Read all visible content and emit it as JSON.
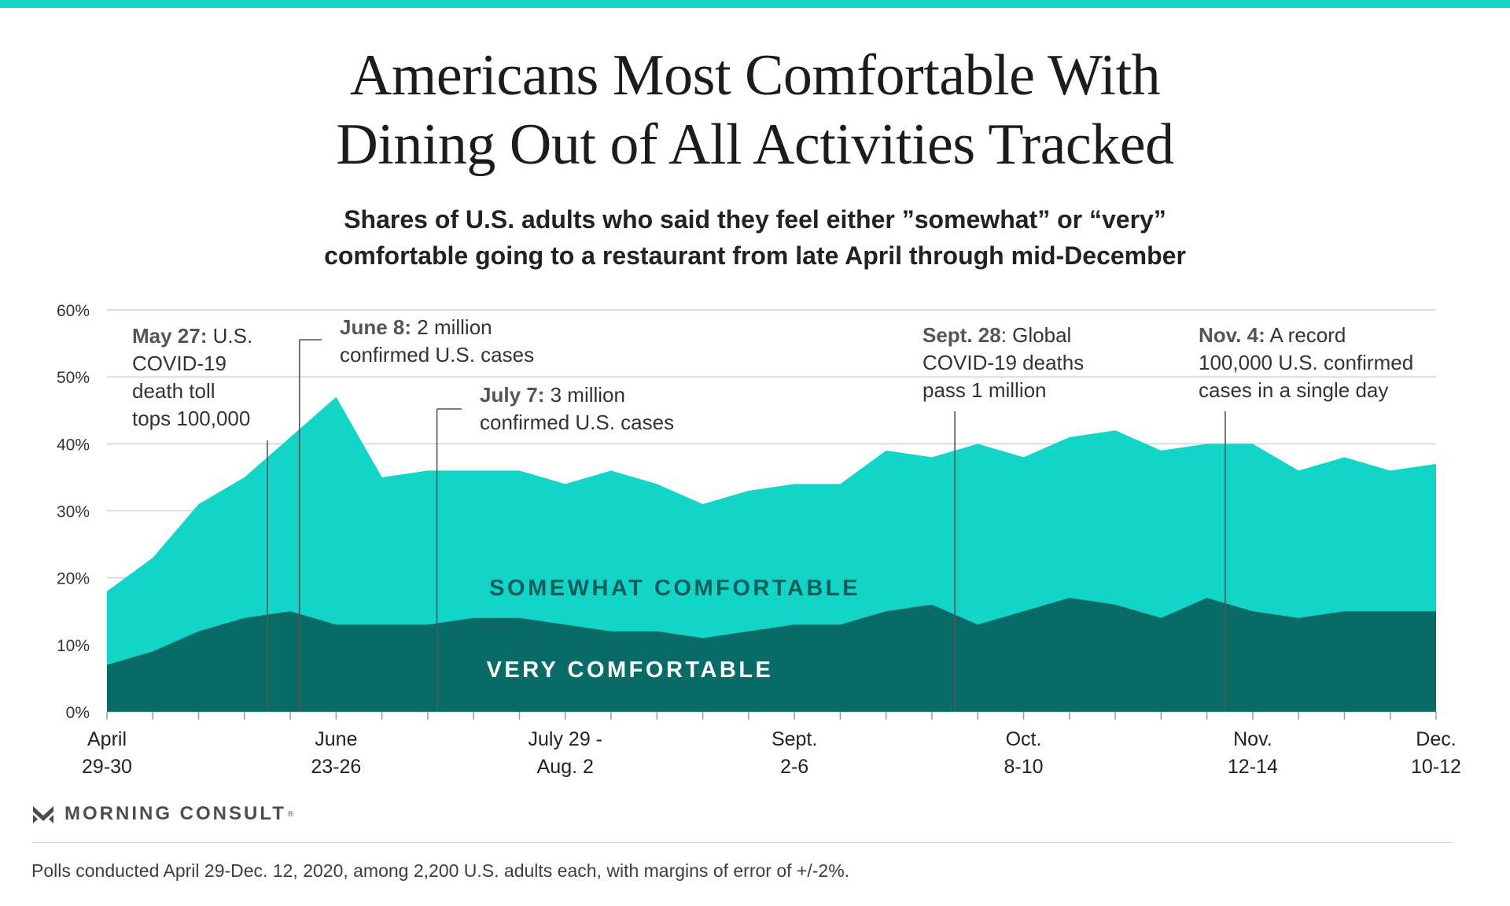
{
  "title_line1": "Americans Most Comfortable With",
  "title_line2": "Dining Out of All Activities Tracked",
  "subtitle_line1": "Shares of U.S. adults who said they feel either ”somewhat” or “very”",
  "subtitle_line2": "comfortable going to a restaurant from late April through mid-December",
  "brand": "MORNING CONSULT",
  "brand_mark": "®",
  "footnote": "Polls conducted April 29-Dec. 12, 2020, among 2,200 U.S. adults each, with margins of error of +/-2%.",
  "colors": {
    "somewhat": "#12d4c7",
    "very": "#086b67",
    "somewhat_label": "#0b5e5a",
    "very_label": "#ffffff",
    "grid": "#d0d0d0",
    "annotation_line": "#555555",
    "topbar": "#12d4c7"
  },
  "chart_data": {
    "type": "area",
    "stacked": true,
    "unit": "%",
    "ylim": [
      0,
      60
    ],
    "yticks": [
      "0%",
      "10%",
      "20%",
      "30%",
      "40%",
      "50%",
      "60%"
    ],
    "grid": true,
    "points_count": 30,
    "xtick_labels": [
      {
        "index": 0,
        "line1": "April",
        "line2": "29-30"
      },
      {
        "index": 5,
        "line1": "June",
        "line2": "23-26"
      },
      {
        "index": 10,
        "line1": "July 29 -",
        "line2": "Aug. 2"
      },
      {
        "index": 15,
        "line1": "Sept.",
        "line2": "2-6"
      },
      {
        "index": 20,
        "line1": "Oct.",
        "line2": "8-10"
      },
      {
        "index": 25,
        "line1": "Nov.",
        "line2": "12-14"
      },
      {
        "index": 29,
        "line1": "Dec.",
        "line2": "10-12"
      }
    ],
    "series": [
      {
        "name": "VERY COMFORTABLE",
        "values": [
          7,
          9,
          12,
          14,
          15,
          13,
          13,
          13,
          14,
          14,
          13,
          12,
          12,
          11,
          12,
          13,
          13,
          15,
          16,
          13,
          15,
          17,
          16,
          14,
          17,
          15,
          14,
          15,
          15,
          15
        ]
      },
      {
        "name": "SOMEWHAT COMFORTABLE",
        "values": [
          11,
          14,
          19,
          21,
          26,
          34,
          22,
          23,
          22,
          22,
          21,
          24,
          22,
          20,
          21,
          21,
          21,
          24,
          22,
          27,
          23,
          24,
          26,
          25,
          23,
          25,
          22,
          23,
          21,
          22
        ]
      }
    ],
    "totals": [
      18,
      23,
      31,
      35,
      41,
      47,
      35,
      36,
      36,
      36,
      34,
      36,
      34,
      31,
      33,
      34,
      34,
      39,
      38,
      40,
      38,
      41,
      42,
      39,
      40,
      40,
      36,
      38,
      36,
      37
    ],
    "annotations": [
      {
        "event_index": 3.5,
        "bold": "May 27:",
        "lines": [
          " U.S.",
          "COVID-19",
          "death toll",
          "tops 100,000"
        ]
      },
      {
        "event_index": 4.2,
        "bold": "June 8:",
        "lines": [
          " 2 million",
          "confirmed U.S. cases"
        ]
      },
      {
        "event_index": 7.2,
        "bold": "July 7:",
        "lines": [
          " 3 million",
          "confirmed U.S. cases"
        ]
      },
      {
        "event_index": 18.5,
        "bold": "Sept. 28",
        "lines": [
          ": Global",
          "COVID-19 deaths",
          "pass 1 million"
        ]
      },
      {
        "event_index": 24.4,
        "bold": "Nov. 4:",
        "lines": [
          " A record",
          "100,000 U.S. confirmed",
          "cases in a single day"
        ]
      }
    ]
  }
}
